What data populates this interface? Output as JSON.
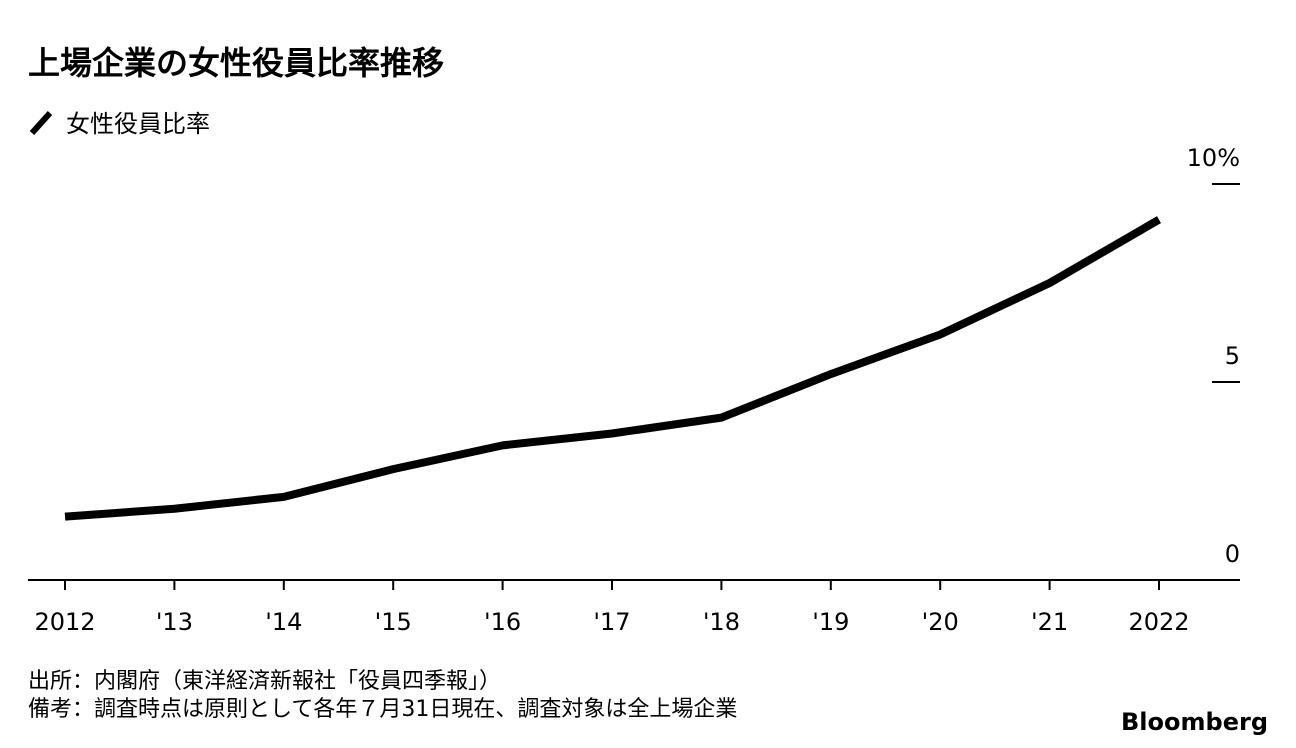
{
  "chart_data": {
    "type": "line",
    "title": "上場企業の女性役員比率推移",
    "categories": [
      "2012",
      "'13",
      "'14",
      "'15",
      "'16",
      "'17",
      "'18",
      "'19",
      "'20",
      "'21",
      "2022"
    ],
    "series": [
      {
        "name": "女性役員比率",
        "color": "#000000",
        "values": [
          1.6,
          1.8,
          2.1,
          2.8,
          3.4,
          3.7,
          4.1,
          5.2,
          6.2,
          7.5,
          9.1
        ]
      }
    ],
    "ylim": [
      0,
      10
    ],
    "yticks": [
      0,
      5,
      {
        "value": 10,
        "label": "10%"
      }
    ],
    "y_axis_side": "right",
    "notes": [
      "出所：内閣府（東洋経済新報社「役員四季報」）",
      "備考：調査時点は原則として各年７月31日現在、調査対象は全上場企業"
    ],
    "source": "Bloomberg"
  }
}
